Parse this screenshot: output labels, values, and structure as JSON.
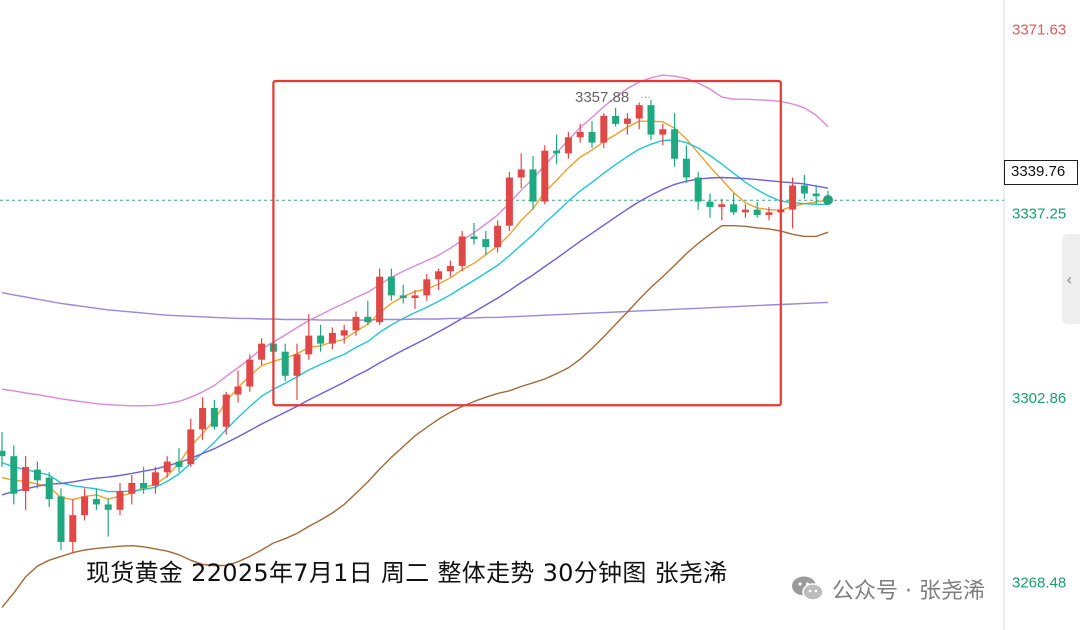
{
  "chart_data": {
    "type": "candlestick",
    "caption": "现货黄金 22025年7月1日 周二 整体走势 30分钟图 张尧浠",
    "y_axis": {
      "position": "right",
      "range": [
        3262.0,
        3374.5
      ],
      "tick_labels": [
        {
          "value": 3371.63,
          "label": "3371.63",
          "color": "#e05a5a"
        },
        {
          "value": 3337.25,
          "label": "3337.25",
          "color": "#1a9e6e"
        },
        {
          "value": 3302.86,
          "label": "3302.86",
          "color": "#1a9e6e"
        },
        {
          "value": 3268.48,
          "label": "3268.48",
          "color": "#1a9e6e"
        }
      ]
    },
    "current_price": {
      "value": 3339.76,
      "label": "3339.76",
      "color": "#26a17b"
    },
    "high_annotation": {
      "value": 3357.88,
      "label": "3357.88"
    },
    "highlight_box": {
      "x_from": 23,
      "x_to": 66,
      "y_from": 3301.5,
      "y_to": 3362.0,
      "color": "#e53935"
    },
    "candles": [
      [
        3293.0,
        3296.5,
        3290.0,
        3292.0
      ],
      [
        3292.0,
        3294.0,
        3283.0,
        3285.0
      ],
      [
        3285.5,
        3292.0,
        3282.0,
        3290.0
      ],
      [
        3289.5,
        3291.0,
        3286.0,
        3287.5
      ],
      [
        3288.0,
        3289.0,
        3282.5,
        3284.0
      ],
      [
        3284.5,
        3286.0,
        3274.5,
        3276.0
      ],
      [
        3276.0,
        3284.0,
        3274.0,
        3281.0
      ],
      [
        3281.0,
        3286.0,
        3280.0,
        3284.5
      ],
      [
        3284.0,
        3286.0,
        3282.0,
        3283.0
      ],
      [
        3283.0,
        3284.0,
        3277.0,
        3282.0
      ],
      [
        3282.0,
        3287.0,
        3281.0,
        3285.5
      ],
      [
        3285.0,
        3288.5,
        3283.0,
        3287.0
      ],
      [
        3287.0,
        3290.0,
        3285.0,
        3286.0
      ],
      [
        3286.5,
        3290.0,
        3285.0,
        3289.0
      ],
      [
        3289.0,
        3292.0,
        3288.0,
        3291.0
      ],
      [
        3291.0,
        3293.5,
        3289.0,
        3290.0
      ],
      [
        3290.5,
        3299.0,
        3290.0,
        3297.0
      ],
      [
        3297.0,
        3303.0,
        3295.0,
        3301.0
      ],
      [
        3301.0,
        3302.5,
        3297.0,
        3297.5
      ],
      [
        3297.5,
        3304.0,
        3296.0,
        3303.5
      ],
      [
        3303.5,
        3308.0,
        3302.0,
        3305.0
      ],
      [
        3305.0,
        3311.0,
        3304.0,
        3310.0
      ],
      [
        3310.0,
        3314.0,
        3309.0,
        3313.0
      ],
      [
        3313.0,
        3314.5,
        3310.5,
        3311.5
      ],
      [
        3311.5,
        3313.0,
        3306.0,
        3307.0
      ],
      [
        3307.0,
        3313.0,
        3302.5,
        3311.0
      ],
      [
        3311.0,
        3318.5,
        3310.0,
        3314.5
      ],
      [
        3314.5,
        3316.5,
        3311.5,
        3313.0
      ],
      [
        3313.0,
        3316.0,
        3312.0,
        3315.0
      ],
      [
        3314.5,
        3316.5,
        3313.0,
        3315.5
      ],
      [
        3315.5,
        3319.0,
        3314.5,
        3318.0
      ],
      [
        3318.0,
        3321.0,
        3316.5,
        3317.0
      ],
      [
        3317.0,
        3327.0,
        3316.5,
        3325.5
      ],
      [
        3325.5,
        3327.0,
        3321.0,
        3322.0
      ],
      [
        3322.0,
        3324.0,
        3320.5,
        3321.5
      ],
      [
        3321.5,
        3323.0,
        3319.5,
        3322.0
      ],
      [
        3322.0,
        3326.0,
        3321.0,
        3325.0
      ],
      [
        3325.0,
        3327.0,
        3323.0,
        3326.5
      ],
      [
        3326.5,
        3328.5,
        3325.5,
        3327.5
      ],
      [
        3327.5,
        3334.0,
        3326.5,
        3333.0
      ],
      [
        3333.0,
        3335.5,
        3331.5,
        3332.5
      ],
      [
        3332.5,
        3334.0,
        3329.5,
        3331.0
      ],
      [
        3331.0,
        3336.0,
        3330.0,
        3335.0
      ],
      [
        3335.0,
        3345.0,
        3334.0,
        3344.0
      ],
      [
        3344.0,
        3348.5,
        3342.0,
        3345.5
      ],
      [
        3345.5,
        3348.0,
        3338.0,
        3339.5
      ],
      [
        3339.5,
        3350.0,
        3339.0,
        3349.0
      ],
      [
        3349.0,
        3352.0,
        3346.5,
        3348.5
      ],
      [
        3348.5,
        3352.5,
        3347.5,
        3351.5
      ],
      [
        3351.5,
        3354.0,
        3350.5,
        3352.5
      ],
      [
        3352.5,
        3354.5,
        3349.5,
        3350.5
      ],
      [
        3350.5,
        3356.0,
        3349.5,
        3355.5
      ],
      [
        3355.5,
        3357.0,
        3353.5,
        3354.0
      ],
      [
        3354.0,
        3356.0,
        3352.0,
        3355.0
      ],
      [
        3355.0,
        3358.0,
        3353.0,
        3357.5
      ],
      [
        3357.5,
        3358.5,
        3351.0,
        3352.0
      ],
      [
        3352.0,
        3354.0,
        3350.0,
        3353.0
      ],
      [
        3353.0,
        3356.0,
        3346.0,
        3347.5
      ],
      [
        3347.5,
        3350.0,
        3343.0,
        3344.0
      ],
      [
        3344.0,
        3345.0,
        3338.0,
        3339.5
      ],
      [
        3339.5,
        3341.0,
        3336.5,
        3338.5
      ],
      [
        3338.5,
        3340.0,
        3336.0,
        3339.0
      ],
      [
        3339.0,
        3341.0,
        3337.0,
        3337.5
      ],
      [
        3337.5,
        3339.0,
        3336.5,
        3338.0
      ],
      [
        3338.0,
        3339.5,
        3336.5,
        3337.0
      ],
      [
        3337.0,
        3338.5,
        3336.0,
        3337.5
      ],
      [
        3337.5,
        3339.0,
        3336.5,
        3338.0
      ],
      [
        3338.0,
        3344.0,
        3334.5,
        3342.5
      ],
      [
        3342.5,
        3344.5,
        3340.0,
        3341.0
      ],
      [
        3341.0,
        3342.5,
        3339.0,
        3340.5
      ],
      [
        3340.5,
        3341.5,
        3339.0,
        3339.8
      ]
    ],
    "series": [
      {
        "type": "line",
        "color": "#f0a030",
        "values": [
          3288,
          3287.5,
          3287.3,
          3286.8,
          3286.3,
          3284.3,
          3283.9,
          3284.5,
          3284.8,
          3284,
          3284.6,
          3285.1,
          3286.2,
          3286.7,
          3288.3,
          3290.7,
          3293.9,
          3296.2,
          3298.8,
          3302.2,
          3304.8,
          3307,
          3308.9,
          3309.7,
          3310.3,
          3311.1,
          3312.3,
          3312.6,
          3313.3,
          3313.8,
          3315.3,
          3316.6,
          3318.8,
          3320.5,
          3321.8,
          3322.7,
          3323.2,
          3324.1,
          3325.3,
          3326.8,
          3328,
          3329.6,
          3331.2,
          3333.3,
          3336,
          3338.2,
          3341.3,
          3343.5,
          3345.8,
          3347.8,
          3349.1,
          3350.7,
          3352,
          3353.4,
          3354.5,
          3354.5,
          3354.4,
          3353.2,
          3351.2,
          3348.6,
          3346,
          3343.6,
          3341.2,
          3339.3,
          3338.3,
          3338,
          3337.9,
          3338.6,
          3339.1,
          3339.4,
          3339.8
        ]
      },
      {
        "type": "line",
        "color": "#25c4d4",
        "values": [
          3290.8,
          3290,
          3289.5,
          3289,
          3288.5,
          3287,
          3286.5,
          3286.2,
          3285.9,
          3285.4,
          3285.4,
          3285.5,
          3285.8,
          3286.2,
          3287.3,
          3288.7,
          3290.7,
          3292.6,
          3294.6,
          3297,
          3299.2,
          3301.3,
          3303.2,
          3304.5,
          3305.6,
          3306.8,
          3308.1,
          3309.1,
          3310.1,
          3311,
          3312.3,
          3313.4,
          3315.1,
          3316.5,
          3317.7,
          3318.8,
          3319.8,
          3320.9,
          3322.1,
          3323.5,
          3324.8,
          3326.2,
          3327.6,
          3329.4,
          3331.4,
          3333.3,
          3335.5,
          3337.5,
          3339.6,
          3341.5,
          3343.1,
          3344.8,
          3346.4,
          3347.9,
          3349.3,
          3350.2,
          3350.9,
          3351,
          3350.5,
          3349.5,
          3348.1,
          3346.5,
          3344.8,
          3343.1,
          3341.7,
          3340.5,
          3339.6,
          3339.3,
          3339.1,
          3339,
          3339
        ]
      },
      {
        "type": "line",
        "color": "#6c5fd8",
        "values": [
          3284.8,
          3285.4,
          3285.9,
          3286.4,
          3286.8,
          3286.9,
          3287.2,
          3287.6,
          3287.9,
          3288.1,
          3288.4,
          3288.8,
          3289.2,
          3289.6,
          3290.2,
          3290.8,
          3291.6,
          3292.5,
          3293.4,
          3294.5,
          3295.6,
          3296.8,
          3298,
          3299.1,
          3300.2,
          3301.3,
          3302.5,
          3303.6,
          3304.7,
          3305.8,
          3307,
          3308.1,
          3309.4,
          3310.6,
          3311.8,
          3312.9,
          3314,
          3315.2,
          3316.4,
          3317.7,
          3318.9,
          3320.2,
          3321.5,
          3322.9,
          3324.4,
          3325.8,
          3327.4,
          3328.9,
          3330.5,
          3332.1,
          3333.6,
          3335.1,
          3336.6,
          3338.1,
          3339.5,
          3340.7,
          3341.8,
          3342.7,
          3343.3,
          3343.7,
          3343.9,
          3344,
          3343.9,
          3343.8,
          3343.6,
          3343.4,
          3343.2,
          3343,
          3342.8,
          3342.4,
          3342
        ]
      },
      {
        "type": "line",
        "color": "#9b88dc",
        "values": [
          3322.5,
          3322.1,
          3321.7,
          3321.3,
          3320.9,
          3320.5,
          3320.2,
          3319.9,
          3319.6,
          3319.3,
          3319.1,
          3318.9,
          3318.7,
          3318.5,
          3318.3,
          3318.2,
          3318.1,
          3318,
          3317.9,
          3317.8,
          3317.7,
          3317.7,
          3317.6,
          3317.6,
          3317.5,
          3317.5,
          3317.5,
          3317.4,
          3317.4,
          3317.4,
          3317.4,
          3317.4,
          3317.5,
          3317.5,
          3317.5,
          3317.6,
          3317.6,
          3317.6,
          3317.7,
          3317.7,
          3317.8,
          3317.9,
          3317.9,
          3318,
          3318.1,
          3318.2,
          3318.3,
          3318.4,
          3318.5,
          3318.6,
          3318.7,
          3318.8,
          3318.9,
          3319,
          3319.1,
          3319.2,
          3319.3,
          3319.4,
          3319.5,
          3319.6,
          3319.7,
          3319.8,
          3319.9,
          3320,
          3320.1,
          3320.2,
          3320.3,
          3320.4,
          3320.5,
          3320.6,
          3320.7
        ]
      },
      {
        "type": "line",
        "color": "#d98ad6",
        "values": [
          3304.5,
          3304.2,
          3303.8,
          3303.5,
          3303.1,
          3302.7,
          3302.4,
          3302.1,
          3301.8,
          3301.6,
          3301.5,
          3301.4,
          3301.4,
          3301.5,
          3301.8,
          3302.2,
          3303,
          3304,
          3305.2,
          3306.9,
          3308.5,
          3310.2,
          3312,
          3313.3,
          3314.6,
          3316,
          3317.3,
          3318.4,
          3319.5,
          3320.5,
          3321.6,
          3322.6,
          3324,
          3325.4,
          3326.5,
          3327.5,
          3328.5,
          3329.5,
          3330.8,
          3332.3,
          3333.7,
          3335.3,
          3337,
          3339.2,
          3341.6,
          3343.8,
          3346.3,
          3348.6,
          3351,
          3353.3,
          3355.2,
          3357.2,
          3359,
          3360.6,
          3361.8,
          3362.6,
          3363.1,
          3362.9,
          3362.5,
          3361.6,
          3360.5,
          3359,
          3358.6,
          3358.6,
          3358.5,
          3358.4,
          3358.2,
          3357.7,
          3357,
          3355.6,
          3353.5
        ]
      },
      {
        "type": "line",
        "color": "#a26a3a",
        "values": [
          3263.8,
          3266.5,
          3269.5,
          3271.5,
          3272.6,
          3273.3,
          3274,
          3274.5,
          3274.8,
          3275,
          3275.2,
          3275.3,
          3275.1,
          3274.7,
          3274.3,
          3273.6,
          3272.6,
          3271.8,
          3271.6,
          3271.6,
          3272.3,
          3273.3,
          3274.5,
          3275.8,
          3276.6,
          3277.6,
          3278.9,
          3280.1,
          3281.4,
          3283,
          3285.1,
          3287.2,
          3289.6,
          3291.8,
          3293.8,
          3295.8,
          3297.4,
          3298.9,
          3300.2,
          3301.3,
          3302.2,
          3303,
          3303.7,
          3304.2,
          3305,
          3305.7,
          3306.4,
          3307.4,
          3308.5,
          3310.1,
          3312.1,
          3314.3,
          3316.6,
          3318.9,
          3321.3,
          3323.5,
          3325.5,
          3327.6,
          3329.8,
          3331.7,
          3333.4,
          3335,
          3335,
          3334.9,
          3334.6,
          3334.4,
          3334,
          3333.4,
          3333,
          3333,
          3333.8
        ]
      }
    ]
  },
  "watermark": {
    "text": "公众号 · 张尧浠",
    "icon": "wechat-icon"
  },
  "side_tab": {
    "icon": "chevron-left-icon",
    "glyph": "‹"
  }
}
